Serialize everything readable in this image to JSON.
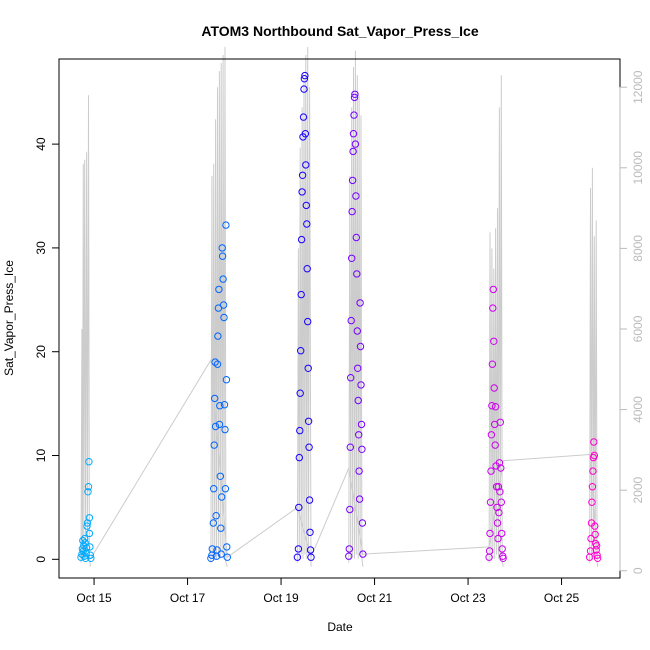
{
  "chart_data": {
    "type": "scatter",
    "title": "ATOM3 Northbound Sat_Vapor_Press_Ice",
    "xlabel": "Date",
    "ylabel": "Sat_Vapor_Press_Ice",
    "x_ticks": [
      "Oct 15",
      "Oct 17",
      "Oct 19",
      "Oct 21",
      "Oct 23",
      "Oct 25"
    ],
    "x_tick_values": [
      15,
      17,
      19,
      21,
      23,
      25
    ],
    "xlim": [
      14.25,
      26.25
    ],
    "y_ticks": [
      "0",
      "10",
      "20",
      "30",
      "40"
    ],
    "y_tick_values": [
      0,
      10,
      20,
      30,
      40
    ],
    "ylim": [
      -1.8,
      48.2
    ],
    "y2_ticks": [
      "0",
      "2000",
      "4000",
      "6000",
      "8000",
      "10000",
      "12000"
    ],
    "y2_tick_values": [
      0,
      2000,
      4000,
      6000,
      8000,
      10000,
      12000
    ],
    "y2lim": [
      -180,
      12700
    ],
    "colors": {
      "altitude_line": "#cccccc",
      "box": "#000000",
      "right_axis": "#bbbbbb",
      "series_gradient": [
        "#00aaff",
        "#0066ff",
        "#1a00ff",
        "#7700ff",
        "#cc00ee",
        "#ff00cc"
      ]
    },
    "series": [
      {
        "color": "#00aaff",
        "points": [
          [
            14.72,
            0.2
          ],
          [
            14.74,
            0.5
          ],
          [
            14.75,
            1.0
          ],
          [
            14.76,
            1.8
          ],
          [
            14.77,
            0.8
          ],
          [
            14.78,
            1.3
          ],
          [
            14.79,
            0.3
          ],
          [
            14.8,
            2.0
          ],
          [
            14.81,
            1.6
          ],
          [
            14.82,
            0.1
          ],
          [
            14.83,
            0.6
          ],
          [
            14.84,
            1.1
          ],
          [
            14.85,
            3.2
          ],
          [
            14.86,
            3.5
          ],
          [
            14.87,
            6.5
          ],
          [
            14.88,
            7.0
          ],
          [
            14.89,
            9.4
          ],
          [
            14.9,
            4.0
          ],
          [
            14.9,
            2.5
          ],
          [
            14.91,
            1.2
          ],
          [
            14.92,
            0.4
          ],
          [
            14.93,
            0.1
          ]
        ],
        "altitude": [
          [
            14.72,
            200
          ],
          [
            14.74,
            6000
          ],
          [
            14.75,
            300
          ],
          [
            14.77,
            10100
          ],
          [
            14.78,
            400
          ],
          [
            14.8,
            10200
          ],
          [
            14.82,
            300
          ],
          [
            14.84,
            10400
          ],
          [
            14.86,
            500
          ],
          [
            14.88,
            11800
          ],
          [
            14.9,
            400
          ],
          [
            14.92,
            100
          ]
        ]
      },
      {
        "color": "#0066ff",
        "points": [
          [
            17.5,
            0.1
          ],
          [
            17.52,
            0.4
          ],
          [
            17.53,
            1.0
          ],
          [
            17.55,
            3.5
          ],
          [
            17.56,
            6.8
          ],
          [
            17.57,
            11.0
          ],
          [
            17.58,
            15.5
          ],
          [
            17.59,
            19.0
          ],
          [
            17.6,
            12.8
          ],
          [
            17.61,
            4.2
          ],
          [
            17.62,
            0.3
          ],
          [
            17.63,
            0.9
          ],
          [
            17.64,
            18.8
          ],
          [
            17.65,
            21.5
          ],
          [
            17.66,
            24.2
          ],
          [
            17.67,
            26.0
          ],
          [
            17.68,
            13.0
          ],
          [
            17.69,
            14.8
          ],
          [
            17.7,
            8.0
          ],
          [
            17.71,
            3.0
          ],
          [
            17.72,
            0.5
          ],
          [
            17.73,
            6.0
          ],
          [
            17.74,
            30.0
          ],
          [
            17.75,
            29.2
          ],
          [
            17.76,
            27.0
          ],
          [
            17.77,
            24.5
          ],
          [
            17.78,
            23.3
          ],
          [
            17.79,
            14.9
          ],
          [
            17.8,
            12.5
          ],
          [
            17.81,
            6.8
          ],
          [
            17.82,
            32.2
          ],
          [
            17.83,
            17.3
          ],
          [
            17.84,
            1.2
          ],
          [
            17.85,
            0.2
          ]
        ],
        "altitude": [
          [
            17.5,
            200
          ],
          [
            17.52,
            9800
          ],
          [
            17.54,
            300
          ],
          [
            17.56,
            10100
          ],
          [
            17.58,
            400
          ],
          [
            17.6,
            11200
          ],
          [
            17.62,
            300
          ],
          [
            17.64,
            12000
          ],
          [
            17.66,
            400
          ],
          [
            17.68,
            12400
          ],
          [
            17.7,
            300
          ],
          [
            17.72,
            12600
          ],
          [
            17.74,
            400
          ],
          [
            17.76,
            12800
          ],
          [
            17.78,
            300
          ],
          [
            17.8,
            13000
          ],
          [
            17.82,
            200
          ],
          [
            17.85,
            100
          ]
        ]
      },
      {
        "color": "#1a00ff",
        "points": [
          [
            19.35,
            0.2
          ],
          [
            19.37,
            1.0
          ],
          [
            19.38,
            5.0
          ],
          [
            19.39,
            9.8
          ],
          [
            19.4,
            12.4
          ],
          [
            19.41,
            16.0
          ],
          [
            19.42,
            20.1
          ],
          [
            19.43,
            25.5
          ],
          [
            19.44,
            30.8
          ],
          [
            19.45,
            35.4
          ],
          [
            19.46,
            37.0
          ],
          [
            19.47,
            40.7
          ],
          [
            19.48,
            42.6
          ],
          [
            19.49,
            45.3
          ],
          [
            19.5,
            46.3
          ],
          [
            19.51,
            46.6
          ],
          [
            19.52,
            41.0
          ],
          [
            19.53,
            38.0
          ],
          [
            19.54,
            34.1
          ],
          [
            19.55,
            32.3
          ],
          [
            19.56,
            28.0
          ],
          [
            19.57,
            22.9
          ],
          [
            19.58,
            18.4
          ],
          [
            19.59,
            13.3
          ],
          [
            19.6,
            10.8
          ],
          [
            19.61,
            5.7
          ],
          [
            19.62,
            2.6
          ],
          [
            19.63,
            0.9
          ],
          [
            19.64,
            0.2
          ]
        ],
        "altitude": [
          [
            19.35,
            200
          ],
          [
            19.37,
            8000
          ],
          [
            19.39,
            300
          ],
          [
            19.41,
            10500
          ],
          [
            19.43,
            400
          ],
          [
            19.45,
            11500
          ],
          [
            19.47,
            300
          ],
          [
            19.49,
            12200
          ],
          [
            19.51,
            400
          ],
          [
            19.53,
            12800
          ],
          [
            19.55,
            300
          ],
          [
            19.57,
            13000
          ],
          [
            19.59,
            400
          ],
          [
            19.61,
            12000
          ],
          [
            19.64,
            100
          ]
        ]
      },
      {
        "color": "#7700ff",
        "points": [
          [
            20.45,
            0.3
          ],
          [
            20.46,
            1.0
          ],
          [
            20.47,
            4.8
          ],
          [
            20.48,
            10.8
          ],
          [
            20.49,
            17.5
          ],
          [
            20.5,
            23.0
          ],
          [
            20.51,
            29.0
          ],
          [
            20.52,
            33.5
          ],
          [
            20.53,
            36.5
          ],
          [
            20.54,
            39.3
          ],
          [
            20.55,
            41.0
          ],
          [
            20.56,
            42.8
          ],
          [
            20.57,
            44.5
          ],
          [
            20.58,
            44.8
          ],
          [
            20.59,
            40.0
          ],
          [
            20.6,
            35.0
          ],
          [
            20.61,
            31.0
          ],
          [
            20.62,
            27.5
          ],
          [
            20.63,
            22.0
          ],
          [
            20.64,
            18.4
          ],
          [
            20.65,
            15.3
          ],
          [
            20.66,
            12.0
          ],
          [
            20.67,
            8.5
          ],
          [
            20.68,
            5.8
          ],
          [
            20.69,
            24.7
          ],
          [
            20.7,
            20.5
          ],
          [
            20.71,
            16.8
          ],
          [
            20.72,
            13.0
          ],
          [
            20.73,
            10.6
          ],
          [
            20.74,
            3.5
          ],
          [
            20.75,
            0.5
          ]
        ],
        "altitude": [
          [
            20.45,
            200
          ],
          [
            20.47,
            9800
          ],
          [
            20.49,
            300
          ],
          [
            20.51,
            11500
          ],
          [
            20.53,
            400
          ],
          [
            20.55,
            12500
          ],
          [
            20.57,
            300
          ],
          [
            20.59,
            12900
          ],
          [
            20.61,
            400
          ],
          [
            20.63,
            12300
          ],
          [
            20.65,
            300
          ],
          [
            20.67,
            11800
          ],
          [
            20.69,
            400
          ],
          [
            20.71,
            11300
          ],
          [
            20.73,
            300
          ],
          [
            20.75,
            100
          ]
        ]
      },
      {
        "color": "#cc00ee",
        "points": [
          [
            23.45,
            0.2
          ],
          [
            23.46,
            0.8
          ],
          [
            23.47,
            2.5
          ],
          [
            23.48,
            5.5
          ],
          [
            23.49,
            8.5
          ],
          [
            23.5,
            12.0
          ],
          [
            23.51,
            14.8
          ],
          [
            23.52,
            18.8
          ],
          [
            23.53,
            24.2
          ],
          [
            23.54,
            26.0
          ],
          [
            23.55,
            21.0
          ],
          [
            23.56,
            16.5
          ],
          [
            23.57,
            13.0
          ],
          [
            23.58,
            11.0
          ],
          [
            23.59,
            14.7
          ],
          [
            23.6,
            9.0
          ],
          [
            23.61,
            7.0
          ],
          [
            23.62,
            5.0
          ],
          [
            23.63,
            3.5
          ],
          [
            23.64,
            2.0
          ],
          [
            23.65,
            7.0
          ],
          [
            23.66,
            4.5
          ],
          [
            23.67,
            9.3
          ],
          [
            23.68,
            6.5
          ],
          [
            23.69,
            13.2
          ],
          [
            23.7,
            8.8
          ],
          [
            23.71,
            5.5
          ],
          [
            23.72,
            2.5
          ],
          [
            23.73,
            1.0
          ],
          [
            23.74,
            0.3
          ],
          [
            23.75,
            0.1
          ]
        ],
        "altitude": [
          [
            23.45,
            200
          ],
          [
            23.47,
            8400
          ],
          [
            23.49,
            300
          ],
          [
            23.51,
            8000
          ],
          [
            23.53,
            400
          ],
          [
            23.55,
            7500
          ],
          [
            23.57,
            300
          ],
          [
            23.59,
            8500
          ],
          [
            23.61,
            400
          ],
          [
            23.63,
            9000
          ],
          [
            23.65,
            300
          ],
          [
            23.67,
            11500
          ],
          [
            23.69,
            400
          ],
          [
            23.71,
            12300
          ],
          [
            23.73,
            300
          ],
          [
            23.75,
            100
          ]
        ]
      },
      {
        "color": "#ff00cc",
        "points": [
          [
            25.6,
            0.2
          ],
          [
            25.62,
            0.8
          ],
          [
            25.63,
            2.0
          ],
          [
            25.64,
            3.5
          ],
          [
            25.65,
            5.5
          ],
          [
            25.66,
            7.0
          ],
          [
            25.67,
            8.5
          ],
          [
            25.68,
            9.8
          ],
          [
            25.69,
            11.3
          ],
          [
            25.7,
            10.0
          ],
          [
            25.71,
            3.2
          ],
          [
            25.72,
            2.4
          ],
          [
            25.73,
            1.5
          ],
          [
            25.74,
            0.9
          ],
          [
            25.75,
            1.3
          ],
          [
            25.76,
            0.4
          ],
          [
            25.77,
            0.1
          ]
        ],
        "altitude": [
          [
            25.6,
            200
          ],
          [
            25.62,
            9500
          ],
          [
            25.64,
            300
          ],
          [
            25.66,
            10000
          ],
          [
            25.68,
            400
          ],
          [
            25.7,
            8300
          ],
          [
            25.72,
            300
          ],
          [
            25.74,
            8700
          ],
          [
            25.76,
            200
          ],
          [
            25.77,
            100
          ]
        ]
      }
    ],
    "connector": [
      [
        14.93,
        0.1
      ],
      [
        17.5,
        19.2
      ],
      [
        17.85,
        0.2
      ],
      [
        19.35,
        5.0
      ],
      [
        19.64,
        0.2
      ],
      [
        20.45,
        8.8
      ],
      [
        20.75,
        0.5
      ],
      [
        23.45,
        1.2
      ],
      [
        23.75,
        9.5
      ],
      [
        25.6,
        10.1
      ],
      [
        25.77,
        0.1
      ]
    ]
  }
}
